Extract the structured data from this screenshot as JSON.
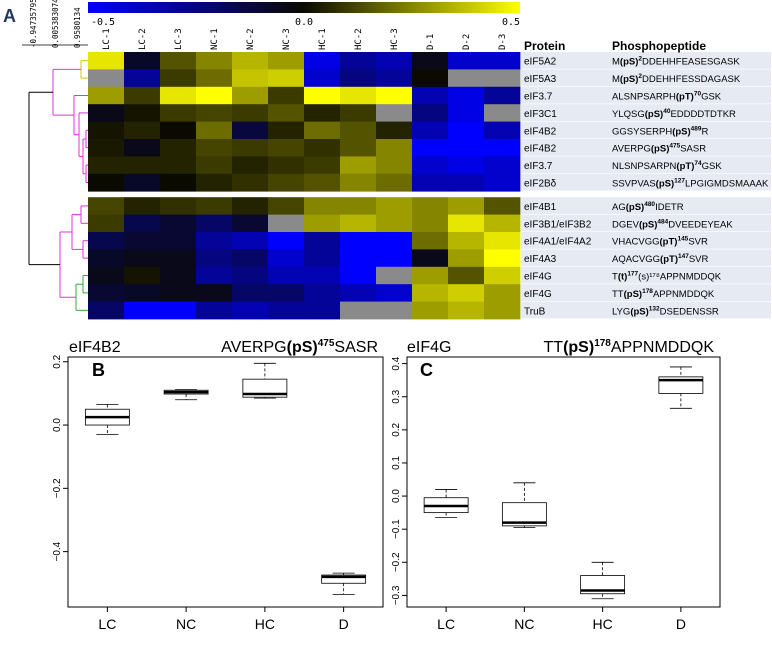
{
  "panel_labels": {
    "a": "A",
    "b": "B",
    "c": "C"
  },
  "colors": {
    "low": "#0000ff",
    "mid": "#0a0a00",
    "high": "#ffff00",
    "na": "#8a8a8a",
    "dendro_dark": "#000000",
    "dendro_yellow": "#cccc00",
    "dendro_magenta": "#dd33dd",
    "dendro_green": "#33aa33",
    "row_stripe": "#e6ebf3"
  },
  "chart_data": [
    {
      "type": "heatmap",
      "colorbar": {
        "min": -0.5,
        "max": 0.5,
        "ticks": [
          "-0.5",
          "0.0",
          "0.5"
        ]
      },
      "dendrogram_scale": [
        "-0.94735795",
        "0.005383074",
        "0.9580134"
      ],
      "columns": [
        "LC-1",
        "LC-2",
        "LC-3",
        "NC-1",
        "NC-2",
        "NC-3",
        "HC-1",
        "HC-2",
        "HC-3",
        "D-1",
        "D-2",
        "D-3"
      ],
      "headers": {
        "protein": "Protein",
        "peptide": "Phosphopeptide"
      },
      "rows": [
        {
          "protein": "eIF5A2",
          "pre": "M",
          "site": "(pS)",
          "sup": "2",
          "post": "DDEHHFEASESGASK",
          "values": [
            0.45,
            -0.08,
            0.15,
            0.25,
            0.35,
            0.3,
            -0.45,
            -0.3,
            -0.35,
            -0.05,
            -0.4,
            -0.4
          ]
        },
        {
          "protein": "eIF5A3",
          "pre": "M",
          "site": "(pS)",
          "sup": "2",
          "post": "DDEHHFESSDAGASK",
          "values": [
            null,
            -0.3,
            0.1,
            0.2,
            0.38,
            0.4,
            -0.4,
            -0.25,
            -0.3,
            0.0,
            null,
            null
          ]
        },
        {
          "protein": "eIF3.7",
          "pre": "ALSNPSARPH",
          "site": "(pT)",
          "sup": "70",
          "post": "GSK",
          "values": [
            0.3,
            0.1,
            0.45,
            0.5,
            0.3,
            0.1,
            0.5,
            0.45,
            0.5,
            -0.35,
            -0.45,
            -0.3
          ]
        },
        {
          "protein": "eIF3C1",
          "pre": "YLQSG",
          "site": "(pS)",
          "sup": "40",
          "post": "EDDDDTDTKR",
          "values": [
            -0.05,
            0.02,
            0.1,
            0.12,
            0.1,
            0.15,
            0.05,
            0.1,
            null,
            -0.25,
            -0.45,
            null
          ]
        },
        {
          "protein": "eIF4B2",
          "pre": "GGSYSERPH",
          "site": "(pS)",
          "sup": "489",
          "post": "R",
          "values": [
            0.02,
            0.05,
            0.0,
            0.2,
            -0.12,
            0.05,
            0.2,
            0.15,
            0.05,
            -0.35,
            -0.5,
            -0.35
          ]
        },
        {
          "protein": "eIF4B2",
          "pre": "AVERPG",
          "site": "(pS)",
          "sup": "475",
          "post": "SASR",
          "values": [
            0.03,
            -0.05,
            0.05,
            0.12,
            0.1,
            0.12,
            0.08,
            0.15,
            0.25,
            -0.5,
            -0.5,
            -0.5
          ]
        },
        {
          "protein": "eIF3.7",
          "pre": "NLSNPSARPN",
          "site": "(pT)",
          "sup": "74",
          "post": "GSK",
          "values": [
            0.05,
            0.05,
            0.05,
            0.1,
            0.05,
            0.08,
            0.1,
            0.3,
            0.25,
            -0.4,
            -0.45,
            -0.4
          ]
        },
        {
          "protein": "eIF2Bδ",
          "pre": "SSVPVAS",
          "site": "(pS)",
          "sup": "127",
          "post": "LPGIGMDSMAAAK",
          "values": [
            0.0,
            -0.08,
            0.0,
            0.05,
            0.08,
            0.12,
            0.15,
            0.25,
            0.2,
            -0.35,
            -0.35,
            -0.4
          ]
        },
        {
          "protein": "eIF4B1",
          "pre": "AG",
          "site": "(pS)",
          "sup": "480",
          "post": "IDETR",
          "values": [
            0.12,
            0.05,
            0.08,
            0.1,
            0.05,
            0.12,
            0.25,
            0.25,
            0.3,
            0.25,
            0.3,
            0.15
          ]
        },
        {
          "protein": "eIF3B1/eIF3B2",
          "pre": "DGEV",
          "site": "(pS)",
          "sup": "484",
          "post": "DVEEDEYEAK",
          "values": [
            0.1,
            -0.15,
            -0.1,
            -0.2,
            -0.1,
            null,
            0.3,
            0.35,
            0.3,
            0.25,
            0.45,
            0.35
          ]
        },
        {
          "protein": "eIF4A1/eIF4A2",
          "pre": "VHACVGG",
          "site": "(pT)",
          "sup": "145",
          "post": "SVR",
          "values": [
            -0.15,
            -0.1,
            -0.1,
            -0.3,
            -0.35,
            -0.5,
            -0.3,
            -0.5,
            -0.5,
            0.2,
            0.35,
            0.45
          ]
        },
        {
          "protein": "eIF4A3",
          "pre": "AQACVGG",
          "site": "(pT)",
          "sup": "147",
          "post": "SVR",
          "values": [
            -0.08,
            -0.05,
            -0.05,
            -0.25,
            -0.2,
            -0.4,
            -0.3,
            -0.5,
            -0.5,
            -0.05,
            0.3,
            0.5
          ]
        },
        {
          "protein": "eIF4G",
          "pre": "T",
          "site": "(t)",
          "sup": "177",
          "post": "(s)¹⁷⁸APPNMDDQK",
          "values": [
            -0.05,
            0.02,
            -0.05,
            -0.3,
            -0.25,
            -0.35,
            -0.35,
            -0.5,
            null,
            0.3,
            0.15,
            0.4
          ]
        },
        {
          "protein": "eIF4G",
          "pre": "TT",
          "site": "(pS)",
          "sup": "178",
          "post": "APPNMDDQK",
          "values": [
            -0.1,
            -0.08,
            -0.05,
            -0.05,
            -0.2,
            -0.2,
            -0.3,
            -0.35,
            -0.4,
            0.35,
            0.4,
            0.3
          ]
        },
        {
          "protein": "TruB",
          "pre": "LYG",
          "site": "(pS)",
          "sup": "132",
          "post": "DSEDENSSR",
          "values": [
            -0.2,
            -0.5,
            -0.5,
            -0.3,
            -0.35,
            -0.3,
            -0.3,
            null,
            null,
            0.3,
            0.35,
            0.3
          ]
        }
      ]
    },
    {
      "type": "box",
      "panel": "B",
      "protein": "eIF4B2",
      "peptide": {
        "pre": "AVERPG",
        "site": "(pS)",
        "sup": "475",
        "post": "SASR"
      },
      "categories": [
        "LC",
        "NC",
        "HC",
        "D"
      ],
      "ylim": [
        -0.575,
        0.215
      ],
      "yticks": [
        -0.4,
        -0.2,
        0.0,
        0.2
      ],
      "ytick_labels": [
        "−0.4",
        "−0.2",
        "0.0",
        "0.2"
      ],
      "boxes": [
        {
          "min": -0.03,
          "q1": 0.0,
          "median": 0.025,
          "q3": 0.05,
          "max": 0.065
        },
        {
          "min": 0.08,
          "q1": 0.098,
          "median": 0.104,
          "q3": 0.11,
          "max": 0.112
        },
        {
          "min": 0.085,
          "q1": 0.088,
          "median": 0.098,
          "q3": 0.145,
          "max": 0.195
        },
        {
          "min": -0.535,
          "q1": -0.5,
          "median": -0.48,
          "q3": -0.474,
          "max": -0.468
        }
      ]
    },
    {
      "type": "box",
      "panel": "C",
      "protein": "eIF4G",
      "peptide": {
        "pre": "TT",
        "site": "(pS)",
        "sup": "178",
        "post": "APPNMDDQK"
      },
      "categories": [
        "LC",
        "NC",
        "HC",
        "D"
      ],
      "ylim": [
        -0.335,
        0.42
      ],
      "yticks": [
        -0.3,
        -0.2,
        -0.1,
        0.0,
        0.1,
        0.2,
        0.3,
        0.4
      ],
      "ytick_labels": [
        "−0.3",
        "−0.2",
        "−0.1",
        "0.0",
        "0.1",
        "0.2",
        "0.3",
        "0.4"
      ],
      "boxes": [
        {
          "min": -0.065,
          "q1": -0.05,
          "median": -0.03,
          "q3": -0.005,
          "max": 0.02
        },
        {
          "min": -0.095,
          "q1": -0.09,
          "median": -0.08,
          "q3": -0.02,
          "max": 0.04
        },
        {
          "min": -0.31,
          "q1": -0.295,
          "median": -0.285,
          "q3": -0.24,
          "max": -0.2
        },
        {
          "min": 0.265,
          "q1": 0.31,
          "median": 0.35,
          "q3": 0.36,
          "max": 0.39
        }
      ]
    }
  ]
}
